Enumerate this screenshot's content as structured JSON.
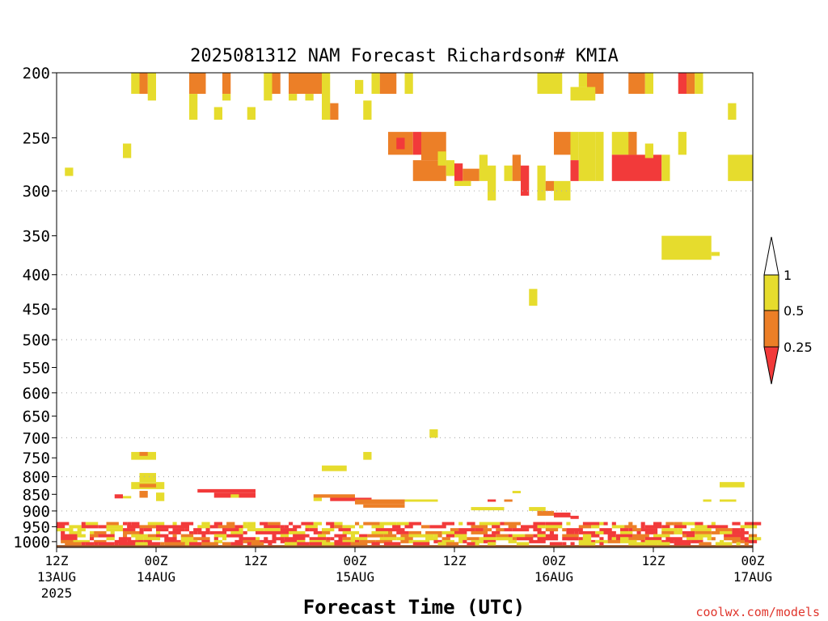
{
  "chart_data": {
    "type": "heatmap",
    "title": "2025081312 NAM Forecast Richardson# KMIA",
    "xlabel": "Forecast Time (UTC)",
    "watermark": "coolwx.com/models",
    "y_scale": "log-pressure",
    "y_range_hpa": [
      1020,
      200
    ],
    "y_ticks": [
      200,
      250,
      300,
      350,
      400,
      450,
      500,
      550,
      600,
      650,
      700,
      750,
      800,
      850,
      900,
      950,
      1000
    ],
    "y_gridlines": [
      300,
      400,
      500,
      600,
      700,
      800,
      900
    ],
    "x_range_hours": [
      0,
      84
    ],
    "x_ticks": [
      {
        "hour": 0,
        "top": "12Z",
        "mid": "13AUG",
        "bot": "2025"
      },
      {
        "hour": 12,
        "top": "00Z",
        "mid": "14AUG",
        "bot": ""
      },
      {
        "hour": 24,
        "top": "12Z",
        "mid": "",
        "bot": ""
      },
      {
        "hour": 36,
        "top": "00Z",
        "mid": "15AUG",
        "bot": ""
      },
      {
        "hour": 48,
        "top": "12Z",
        "mid": "",
        "bot": ""
      },
      {
        "hour": 60,
        "top": "00Z",
        "mid": "16AUG",
        "bot": ""
      },
      {
        "hour": 72,
        "top": "12Z",
        "mid": "",
        "bot": ""
      },
      {
        "hour": 84,
        "top": "00Z",
        "mid": "17AUG",
        "bot": ""
      }
    ],
    "legend": {
      "thresholds": [
        "1",
        "0.5",
        "0.25"
      ],
      "colors": {
        "lt_0_25": "#f23a3a",
        "0_25_to_0_5": "#ec7f27",
        "0_5_to_1": "#e6dc2d",
        "gt_1": "#ffffff"
      }
    },
    "colors": {
      "red": "#f23a3a",
      "orange": "#ec7f27",
      "yellow": "#e6dc2d",
      "ground": "#96542b",
      "grid": "#b0b0b0"
    },
    "cells": [
      {
        "h0": 9,
        "h1": 10,
        "p0": 200,
        "p1": 215,
        "c": "yellow"
      },
      {
        "h0": 10,
        "h1": 11,
        "p0": 200,
        "p1": 215,
        "c": "orange"
      },
      {
        "h0": 11,
        "h1": 12,
        "p0": 200,
        "p1": 220,
        "c": "yellow"
      },
      {
        "h0": 16,
        "h1": 18,
        "p0": 200,
        "p1": 215,
        "c": "orange"
      },
      {
        "h0": 16,
        "h1": 17,
        "p0": 215,
        "p1": 235,
        "c": "yellow"
      },
      {
        "h0": 20,
        "h1": 21,
        "p0": 200,
        "p1": 215,
        "c": "orange"
      },
      {
        "h0": 20,
        "h1": 21,
        "p0": 215,
        "p1": 220,
        "c": "yellow"
      },
      {
        "h0": 19,
        "h1": 20,
        "p0": 225,
        "p1": 235,
        "c": "yellow"
      },
      {
        "h0": 23,
        "h1": 24,
        "p0": 225,
        "p1": 235,
        "c": "yellow"
      },
      {
        "h0": 25,
        "h1": 26,
        "p0": 200,
        "p1": 220,
        "c": "yellow"
      },
      {
        "h0": 26,
        "h1": 27,
        "p0": 200,
        "p1": 215,
        "c": "orange"
      },
      {
        "h0": 28,
        "h1": 32,
        "p0": 200,
        "p1": 215,
        "c": "orange"
      },
      {
        "h0": 28,
        "h1": 29,
        "p0": 215,
        "p1": 220,
        "c": "yellow"
      },
      {
        "h0": 30,
        "h1": 31,
        "p0": 215,
        "p1": 220,
        "c": "yellow"
      },
      {
        "h0": 32,
        "h1": 33,
        "p0": 200,
        "p1": 235,
        "c": "yellow"
      },
      {
        "h0": 33,
        "h1": 34,
        "p0": 222,
        "p1": 235,
        "c": "orange"
      },
      {
        "h0": 36,
        "h1": 37,
        "p0": 205,
        "p1": 215,
        "c": "yellow"
      },
      {
        "h0": 37,
        "h1": 38,
        "p0": 220,
        "p1": 235,
        "c": "yellow"
      },
      {
        "h0": 38,
        "h1": 39,
        "p0": 200,
        "p1": 215,
        "c": "yellow"
      },
      {
        "h0": 39,
        "h1": 41,
        "p0": 200,
        "p1": 215,
        "c": "orange"
      },
      {
        "h0": 42,
        "h1": 43,
        "p0": 200,
        "p1": 215,
        "c": "yellow"
      },
      {
        "h0": 58,
        "h1": 61,
        "p0": 200,
        "p1": 215,
        "c": "yellow"
      },
      {
        "h0": 63,
        "h1": 64,
        "p0": 200,
        "p1": 210,
        "c": "yellow"
      },
      {
        "h0": 64,
        "h1": 66,
        "p0": 200,
        "p1": 215,
        "c": "orange"
      },
      {
        "h0": 62,
        "h1": 65,
        "p0": 210,
        "p1": 220,
        "c": "yellow"
      },
      {
        "h0": 69,
        "h1": 71,
        "p0": 200,
        "p1": 215,
        "c": "orange"
      },
      {
        "h0": 71,
        "h1": 72,
        "p0": 200,
        "p1": 215,
        "c": "yellow"
      },
      {
        "h0": 75,
        "h1": 76,
        "p0": 200,
        "p1": 215,
        "c": "red"
      },
      {
        "h0": 76,
        "h1": 77,
        "p0": 200,
        "p1": 215,
        "c": "orange"
      },
      {
        "h0": 77,
        "h1": 78,
        "p0": 200,
        "p1": 215,
        "c": "yellow"
      },
      {
        "h0": 81,
        "h1": 82,
        "p0": 222,
        "p1": 235,
        "c": "yellow"
      },
      {
        "h0": 8,
        "h1": 9,
        "p0": 255,
        "p1": 268,
        "c": "yellow"
      },
      {
        "h0": 1,
        "h1": 2,
        "p0": 277,
        "p1": 285,
        "c": "yellow"
      },
      {
        "h0": 40,
        "h1": 42,
        "p0": 245,
        "p1": 265,
        "c": "orange"
      },
      {
        "h0": 41,
        "h1": 42,
        "p0": 250,
        "p1": 260,
        "c": "red"
      },
      {
        "h0": 42,
        "h1": 43,
        "p0": 245,
        "p1": 265,
        "c": "orange"
      },
      {
        "h0": 43,
        "h1": 44,
        "p0": 245,
        "p1": 265,
        "c": "red"
      },
      {
        "h0": 44,
        "h1": 47,
        "p0": 245,
        "p1": 270,
        "c": "orange"
      },
      {
        "h0": 43,
        "h1": 47,
        "p0": 270,
        "p1": 290,
        "c": "orange"
      },
      {
        "h0": 46,
        "h1": 47,
        "p0": 262,
        "p1": 275,
        "c": "yellow"
      },
      {
        "h0": 47,
        "h1": 48,
        "p0": 270,
        "p1": 285,
        "c": "yellow"
      },
      {
        "h0": 48,
        "h1": 49,
        "p0": 273,
        "p1": 290,
        "c": "red"
      },
      {
        "h0": 49,
        "h1": 51,
        "p0": 278,
        "p1": 290,
        "c": "orange"
      },
      {
        "h0": 48,
        "h1": 50,
        "p0": 290,
        "p1": 295,
        "c": "yellow"
      },
      {
        "h0": 51,
        "h1": 52,
        "p0": 265,
        "p1": 290,
        "c": "yellow"
      },
      {
        "h0": 52,
        "h1": 53,
        "p0": 275,
        "p1": 310,
        "c": "yellow"
      },
      {
        "h0": 54,
        "h1": 55,
        "p0": 275,
        "p1": 290,
        "c": "yellow"
      },
      {
        "h0": 55,
        "h1": 56,
        "p0": 265,
        "p1": 290,
        "c": "orange"
      },
      {
        "h0": 56,
        "h1": 57,
        "p0": 275,
        "p1": 305,
        "c": "red"
      },
      {
        "h0": 58,
        "h1": 59,
        "p0": 275,
        "p1": 310,
        "c": "yellow"
      },
      {
        "h0": 59,
        "h1": 60,
        "p0": 290,
        "p1": 300,
        "c": "orange"
      },
      {
        "h0": 60,
        "h1": 62,
        "p0": 290,
        "p1": 310,
        "c": "yellow"
      },
      {
        "h0": 60,
        "h1": 62,
        "p0": 245,
        "p1": 265,
        "c": "orange"
      },
      {
        "h0": 62,
        "h1": 63,
        "p0": 245,
        "p1": 270,
        "c": "yellow"
      },
      {
        "h0": 62,
        "h1": 63,
        "p0": 270,
        "p1": 290,
        "c": "red"
      },
      {
        "h0": 63,
        "h1": 65,
        "p0": 245,
        "p1": 290,
        "c": "yellow"
      },
      {
        "h0": 65,
        "h1": 66,
        "p0": 245,
        "p1": 290,
        "c": "yellow"
      },
      {
        "h0": 67,
        "h1": 70,
        "p0": 245,
        "p1": 265,
        "c": "yellow"
      },
      {
        "h0": 69,
        "h1": 70,
        "p0": 245,
        "p1": 265,
        "c": "orange"
      },
      {
        "h0": 67,
        "h1": 73,
        "p0": 265,
        "p1": 290,
        "c": "red"
      },
      {
        "h0": 71,
        "h1": 72,
        "p0": 255,
        "p1": 268,
        "c": "yellow"
      },
      {
        "h0": 73,
        "h1": 74,
        "p0": 265,
        "p1": 290,
        "c": "yellow"
      },
      {
        "h0": 75,
        "h1": 76,
        "p0": 245,
        "p1": 265,
        "c": "yellow"
      },
      {
        "h0": 81,
        "h1": 84,
        "p0": 265,
        "p1": 290,
        "c": "yellow"
      },
      {
        "h0": 73,
        "h1": 79,
        "p0": 350,
        "p1": 380,
        "c": "yellow"
      },
      {
        "h0": 79,
        "h1": 80,
        "p0": 370,
        "p1": 375,
        "c": "yellow"
      },
      {
        "h0": 57,
        "h1": 58,
        "p0": 420,
        "p1": 445,
        "c": "yellow"
      },
      {
        "h0": 45,
        "h1": 46,
        "p0": 680,
        "p1": 700,
        "c": "yellow"
      },
      {
        "h0": 9,
        "h1": 12,
        "p0": 735,
        "p1": 755,
        "c": "yellow"
      },
      {
        "h0": 10,
        "h1": 11,
        "p0": 735,
        "p1": 745,
        "c": "orange"
      },
      {
        "h0": 37,
        "h1": 38,
        "p0": 735,
        "p1": 755,
        "c": "yellow"
      },
      {
        "h0": 32,
        "h1": 35,
        "p0": 770,
        "p1": 785,
        "c": "yellow"
      },
      {
        "h0": 10,
        "h1": 12,
        "p0": 790,
        "p1": 815,
        "c": "yellow"
      },
      {
        "h0": 9,
        "h1": 13,
        "p0": 815,
        "p1": 835,
        "c": "yellow"
      },
      {
        "h0": 10,
        "h1": 12,
        "p0": 820,
        "p1": 830,
        "c": "orange"
      },
      {
        "h0": 10,
        "h1": 11,
        "p0": 840,
        "p1": 860,
        "c": "orange"
      },
      {
        "h0": 12,
        "h1": 13,
        "p0": 845,
        "p1": 870,
        "c": "yellow"
      },
      {
        "h0": 7,
        "h1": 8,
        "p0": 850,
        "p1": 862,
        "c": "red"
      },
      {
        "h0": 8,
        "h1": 9,
        "p0": 855,
        "p1": 862,
        "c": "yellow"
      },
      {
        "h0": 17,
        "h1": 24,
        "p0": 835,
        "p1": 845,
        "c": "red"
      },
      {
        "h0": 19,
        "h1": 24,
        "p0": 845,
        "p1": 860,
        "c": "red"
      },
      {
        "h0": 21,
        "h1": 22,
        "p0": 850,
        "p1": 860,
        "c": "yellow"
      },
      {
        "h0": 31,
        "h1": 36,
        "p0": 850,
        "p1": 860,
        "c": "orange"
      },
      {
        "h0": 31,
        "h1": 32,
        "p0": 860,
        "p1": 870,
        "c": "yellow"
      },
      {
        "h0": 33,
        "h1": 38,
        "p0": 860,
        "p1": 870,
        "c": "red"
      },
      {
        "h0": 36,
        "h1": 42,
        "p0": 865,
        "p1": 880,
        "c": "orange"
      },
      {
        "h0": 37,
        "h1": 42,
        "p0": 880,
        "p1": 890,
        "c": "orange"
      },
      {
        "h0": 42,
        "h1": 46,
        "p0": 865,
        "p1": 872,
        "c": "yellow"
      },
      {
        "h0": 55,
        "h1": 56,
        "p0": 840,
        "p1": 847,
        "c": "yellow"
      },
      {
        "h0": 52,
        "h1": 53,
        "p0": 865,
        "p1": 872,
        "c": "red"
      },
      {
        "h0": 54,
        "h1": 55,
        "p0": 865,
        "p1": 872,
        "c": "orange"
      },
      {
        "h0": 80,
        "h1": 83,
        "p0": 815,
        "p1": 830,
        "c": "yellow"
      },
      {
        "h0": 78,
        "h1": 79,
        "p0": 865,
        "p1": 872,
        "c": "yellow"
      },
      {
        "h0": 80,
        "h1": 82,
        "p0": 865,
        "p1": 872,
        "c": "yellow"
      },
      {
        "h0": 50,
        "h1": 54,
        "p0": 888,
        "p1": 898,
        "c": "yellow"
      },
      {
        "h0": 57,
        "h1": 59,
        "p0": 888,
        "p1": 900,
        "c": "yellow"
      },
      {
        "h0": 58,
        "h1": 60,
        "p0": 900,
        "p1": 915,
        "c": "orange"
      },
      {
        "h0": 60,
        "h1": 62,
        "p0": 905,
        "p1": 920,
        "c": "red"
      },
      {
        "h0": 62,
        "h1": 63,
        "p0": 915,
        "p1": 925,
        "c": "red"
      },
      {
        "h0": 0,
        "h1": 84,
        "p0": 1012,
        "p1": 1020,
        "c": "ground"
      }
    ],
    "low_level": {
      "layers": [
        940,
        950,
        960,
        970,
        980,
        990,
        1000,
        1007
      ],
      "ramp_start_hpa": 905
    }
  }
}
